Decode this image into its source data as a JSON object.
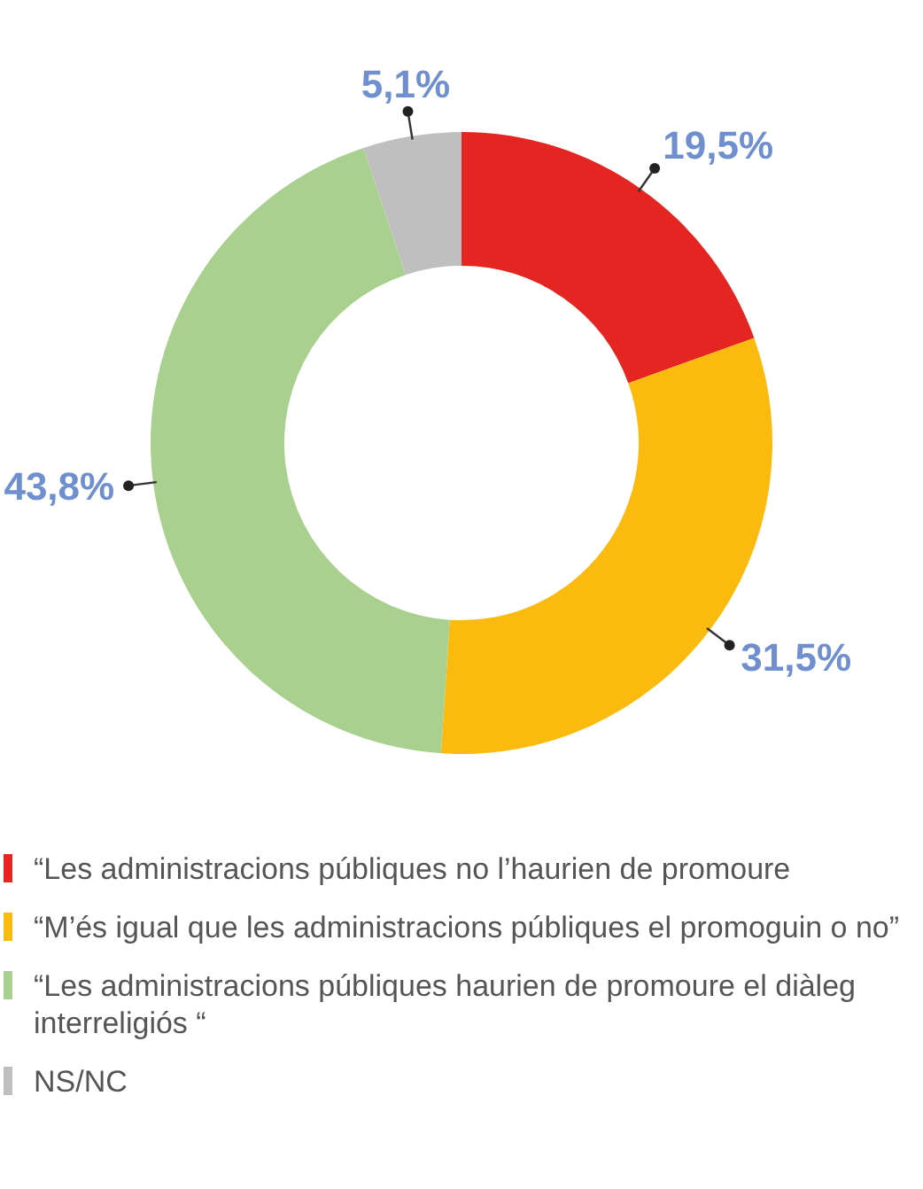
{
  "chart_data": {
    "type": "donut",
    "categories": [
      "“Les administracions públiques no l’haurien de promoure",
      "“M’és igual que les administracions públiques el promoguin o no”",
      "“Les administracions públiques haurien de promoure el diàleg interreligiós “",
      "NS/NC"
    ],
    "values": [
      19.5,
      31.5,
      43.8,
      5.1
    ],
    "value_labels": [
      "19,5%",
      "31,5%",
      "43,8%",
      "5,1%"
    ],
    "colors": [
      "#e52521",
      "#fbba0e",
      "#a9d08e",
      "#bfbfbf"
    ],
    "legend": "bottom"
  }
}
